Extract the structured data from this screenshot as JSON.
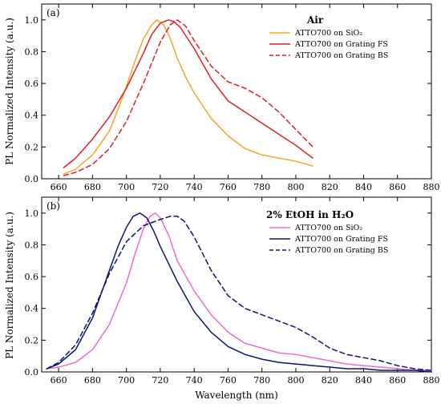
{
  "chart_data": [
    {
      "type": "line",
      "panel_label": "(a)",
      "legend_title": "Air",
      "ylabel": "PL Normalized Intensity (a.u.)",
      "xlabel": "",
      "xlim": [
        650,
        880
      ],
      "ylim": [
        0,
        1.1
      ],
      "y_ticks": [
        "0.0",
        "0.2",
        "0.4",
        "0.6",
        "0.8",
        "1.0"
      ],
      "y_tick_values": [
        0,
        0.2,
        0.4,
        0.6,
        0.8,
        1.0
      ],
      "x_ticks": [
        660,
        680,
        700,
        720,
        740,
        760,
        780,
        800,
        820,
        840,
        860,
        880
      ],
      "legend_position": "top-right",
      "series": [
        {
          "name": "ATTO700 on SiO₂",
          "color": "#f5a623",
          "dash": "solid",
          "x": [
            663,
            670,
            680,
            690,
            698,
            705,
            710,
            715,
            718,
            722,
            726,
            730,
            735,
            740,
            750,
            760,
            770,
            780,
            790,
            800,
            810
          ],
          "y": [
            0.03,
            0.06,
            0.15,
            0.3,
            0.52,
            0.74,
            0.88,
            0.97,
            1.0,
            0.97,
            0.88,
            0.76,
            0.64,
            0.54,
            0.38,
            0.27,
            0.19,
            0.15,
            0.13,
            0.11,
            0.08
          ]
        },
        {
          "name": "ATTO700 on Grating FS",
          "color": "#e02020",
          "dash": "solid",
          "x": [
            663,
            670,
            680,
            690,
            700,
            710,
            715,
            720,
            725,
            728,
            732,
            740,
            750,
            760,
            770,
            780,
            790,
            800,
            810
          ],
          "y": [
            0.07,
            0.13,
            0.25,
            0.39,
            0.57,
            0.79,
            0.91,
            0.98,
            1.0,
            0.99,
            0.95,
            0.82,
            0.63,
            0.49,
            0.42,
            0.35,
            0.28,
            0.21,
            0.13
          ]
        },
        {
          "name": "ATTO700 on Grating BS",
          "color": "#e02020",
          "dash": "dashed",
          "x": [
            663,
            670,
            680,
            690,
            700,
            710,
            720,
            726,
            730,
            735,
            740,
            750,
            760,
            770,
            780,
            790,
            800,
            810
          ],
          "y": [
            0.02,
            0.04,
            0.09,
            0.19,
            0.36,
            0.6,
            0.86,
            0.97,
            1.0,
            0.96,
            0.87,
            0.71,
            0.61,
            0.57,
            0.51,
            0.42,
            0.31,
            0.2
          ]
        }
      ]
    },
    {
      "type": "line",
      "panel_label": "(b)",
      "legend_title": "2% EtOH in H₂O",
      "ylabel": "PL Normalized Intensity (a.u.)",
      "xlabel": "Wavelength (nm)",
      "xlim": [
        650,
        880
      ],
      "ylim": [
        0,
        1.1
      ],
      "y_ticks": [
        "0.0",
        "0.2",
        "0.4",
        "0.6",
        "0.8",
        "1.0"
      ],
      "y_tick_values": [
        0,
        0.2,
        0.4,
        0.6,
        0.8,
        1.0
      ],
      "x_ticks": [
        660,
        680,
        700,
        720,
        740,
        760,
        780,
        800,
        820,
        840,
        860,
        880
      ],
      "legend_position": "top-right",
      "series": [
        {
          "name": "ATTO700 on SiO₂",
          "color": "#f06acb",
          "dash": "solid",
          "x": [
            653,
            660,
            670,
            680,
            690,
            700,
            705,
            710,
            714,
            717,
            720,
            725,
            730,
            740,
            750,
            760,
            770,
            780,
            790,
            800,
            810,
            820,
            830,
            840,
            850,
            860,
            870,
            880
          ],
          "y": [
            0.02,
            0.03,
            0.06,
            0.14,
            0.3,
            0.56,
            0.74,
            0.9,
            0.98,
            1.0,
            0.97,
            0.86,
            0.7,
            0.51,
            0.36,
            0.25,
            0.18,
            0.15,
            0.12,
            0.11,
            0.09,
            0.07,
            0.05,
            0.04,
            0.03,
            0.02,
            0.01,
            0.01
          ]
        },
        {
          "name": "ATTO700 on Grating FS",
          "color": "#0a1478",
          "dash": "solid",
          "x": [
            653,
            660,
            670,
            680,
            690,
            695,
            700,
            704,
            708,
            712,
            716,
            720,
            730,
            740,
            750,
            760,
            770,
            780,
            790,
            800,
            810,
            820,
            830,
            840,
            850,
            860,
            870,
            880
          ],
          "y": [
            0.02,
            0.05,
            0.14,
            0.34,
            0.64,
            0.79,
            0.91,
            0.98,
            1.0,
            0.97,
            0.89,
            0.79,
            0.57,
            0.38,
            0.25,
            0.16,
            0.11,
            0.08,
            0.06,
            0.05,
            0.04,
            0.03,
            0.02,
            0.02,
            0.01,
            0.01,
            0.01,
            0.0
          ]
        },
        {
          "name": "ATTO700 on Grating BS",
          "color": "#0a1478",
          "dash": "dashed",
          "x": [
            653,
            660,
            670,
            680,
            690,
            700,
            710,
            720,
            726,
            730,
            734,
            740,
            750,
            760,
            770,
            780,
            790,
            800,
            810,
            820,
            830,
            840,
            850,
            860,
            870,
            880
          ],
          "y": [
            0.02,
            0.06,
            0.17,
            0.37,
            0.62,
            0.82,
            0.92,
            0.96,
            0.98,
            0.98,
            0.95,
            0.85,
            0.64,
            0.48,
            0.4,
            0.36,
            0.32,
            0.28,
            0.22,
            0.15,
            0.11,
            0.09,
            0.07,
            0.04,
            0.02,
            0.01
          ]
        }
      ]
    }
  ]
}
